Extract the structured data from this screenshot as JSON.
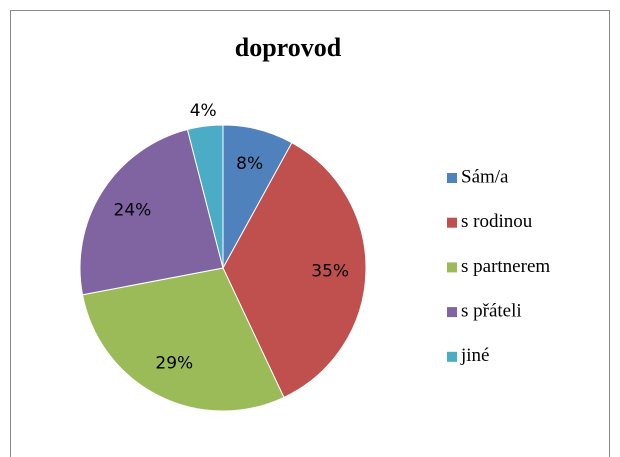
{
  "chart_data": {
    "type": "pie",
    "title": "doprovod",
    "categories": [
      "Sám/a",
      "s rodinou",
      "s partnerem",
      "s přáteli",
      "jiné"
    ],
    "values": [
      8,
      35,
      29,
      24,
      4
    ],
    "value_labels": [
      "8%",
      "35%",
      "29%",
      "24%",
      "4%"
    ],
    "colors": [
      "#4f81bd",
      "#c0504d",
      "#9bbb59",
      "#8064a2",
      "#4bacc6"
    ],
    "legend": "right"
  }
}
